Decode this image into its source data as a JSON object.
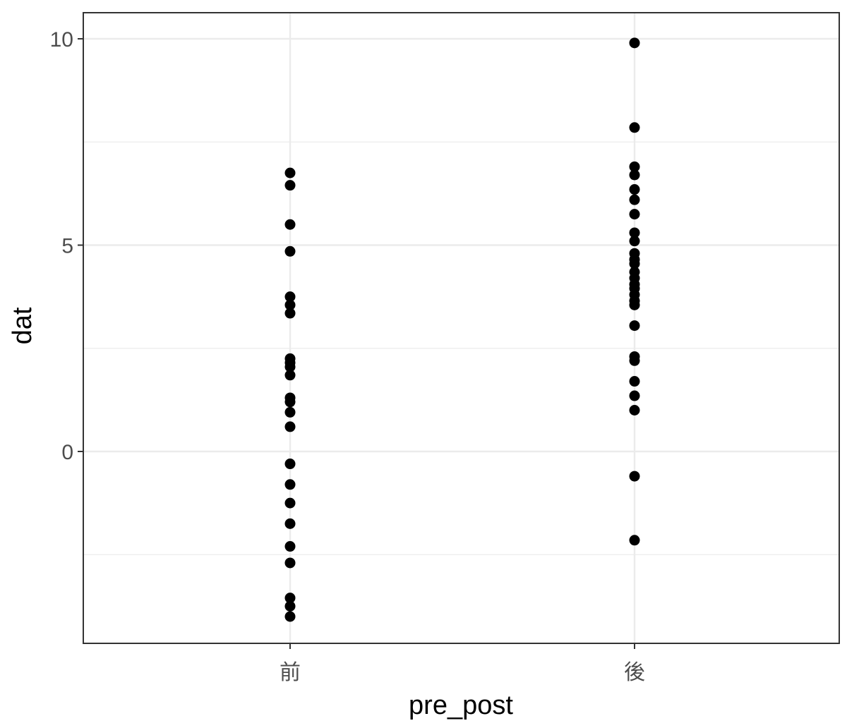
{
  "chart_data": {
    "type": "scatter",
    "xlabel": "pre_post",
    "ylabel": "dat",
    "categories": [
      "前",
      "後"
    ],
    "ylim": [
      -4.6,
      10.6
    ],
    "y_ticks": [
      0,
      5,
      10
    ],
    "y_tick_labels": [
      "0",
      "5",
      "10"
    ],
    "y_minor_grid": [
      -2.5,
      2.5,
      7.5
    ],
    "grid": true,
    "panel_border": true,
    "legend": "none",
    "colors": {
      "point": "#000000",
      "grid": "#ebebeb",
      "border": "#333333",
      "tick_label": "#4d4d4d"
    },
    "series": [
      {
        "category": "前",
        "values": [
          6.75,
          6.45,
          5.5,
          4.85,
          3.75,
          3.55,
          3.35,
          2.25,
          2.15,
          2.05,
          1.85,
          1.3,
          1.2,
          0.95,
          0.6,
          -0.3,
          -0.8,
          -1.25,
          -1.75,
          -2.3,
          -2.7,
          -3.55,
          -3.75,
          -4.0
        ]
      },
      {
        "category": "後",
        "values": [
          9.9,
          7.85,
          6.9,
          6.7,
          6.35,
          6.1,
          5.75,
          5.3,
          5.1,
          4.8,
          4.65,
          4.55,
          4.35,
          4.2,
          4.05,
          3.95,
          3.8,
          3.65,
          3.55,
          3.05,
          2.3,
          2.2,
          1.7,
          1.35,
          1.0,
          -0.6,
          -2.15
        ]
      }
    ]
  }
}
